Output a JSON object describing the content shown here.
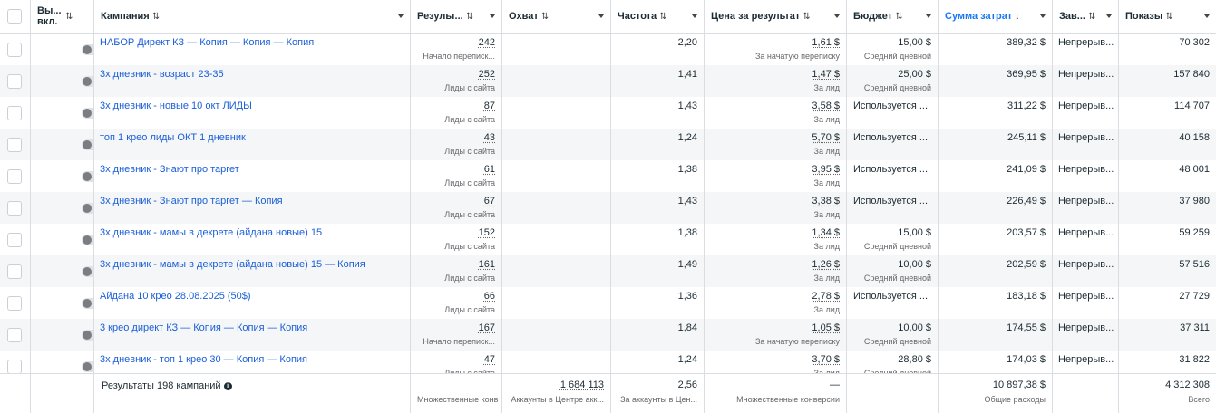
{
  "columns": {
    "toggle": "Вы... вкл.",
    "campaign": "Кампания",
    "results": "Результ...",
    "reach": "Охват",
    "frequency": "Частота",
    "cpr": "Цена за результат",
    "budget": "Бюджет",
    "spent": "Сумма затрат",
    "ends": "Зав...",
    "impressions": "Показы"
  },
  "icons": {
    "sort": "sort-arrows-icon",
    "sort_active": "sort-down-arrow-icon",
    "caret": "caret-down-icon",
    "info": "info-icon"
  },
  "colors": {
    "link": "#1a5fd8",
    "active_header": "#1877f2",
    "toggle_off": "#7a7d82"
  },
  "rows": [
    {
      "name": "НАБОР Директ КЗ — Копия — Копия — Копия",
      "results": "242",
      "results_type": "Начало переписк...",
      "reach": "",
      "frequency": "2,20",
      "cpr": "1,61 $",
      "cpr_type": "За начатую переписку",
      "budget": "15,00 $",
      "budget_type": "Средний дневной",
      "spent": "389,32 $",
      "ends": "Непрерыв...",
      "impressions": "70 302"
    },
    {
      "name": "3х дневник - возраст 23-35",
      "results": "252",
      "results_type": "Лиды с сайта",
      "reach": "",
      "frequency": "1,41",
      "cpr": "1,47 $",
      "cpr_type": "За лид",
      "budget": "25,00 $",
      "budget_type": "Средний дневной",
      "spent": "369,95 $",
      "ends": "Непрерыв...",
      "impressions": "157 840"
    },
    {
      "name": "3х дневник - новые 10 окт ЛИДЫ",
      "results": "87",
      "results_type": "Лиды с сайта",
      "reach": "",
      "frequency": "1,43",
      "cpr": "3,58 $",
      "cpr_type": "За лид",
      "budget": "Используется ...",
      "budget_type": "",
      "spent": "311,22 $",
      "ends": "Непрерыв...",
      "impressions": "114 707"
    },
    {
      "name": "топ 1 крео лиды ОКТ 1 дневник",
      "results": "43",
      "results_type": "Лиды с сайта",
      "reach": "",
      "frequency": "1,24",
      "cpr": "5,70 $",
      "cpr_type": "За лид",
      "budget": "Используется ...",
      "budget_type": "",
      "spent": "245,11 $",
      "ends": "Непрерыв...",
      "impressions": "40 158"
    },
    {
      "name": "3х дневник - Знают про таргет",
      "results": "61",
      "results_type": "Лиды с сайта",
      "reach": "",
      "frequency": "1,38",
      "cpr": "3,95 $",
      "cpr_type": "За лид",
      "budget": "Используется ...",
      "budget_type": "",
      "spent": "241,09 $",
      "ends": "Непрерыв...",
      "impressions": "48 001"
    },
    {
      "name": "3х дневник - Знают про таргет — Копия",
      "results": "67",
      "results_type": "Лиды с сайта",
      "reach": "",
      "frequency": "1,43",
      "cpr": "3,38 $",
      "cpr_type": "За лид",
      "budget": "Используется ...",
      "budget_type": "",
      "spent": "226,49 $",
      "ends": "Непрерыв...",
      "impressions": "37 980"
    },
    {
      "name": "3х дневник - мамы в декрете (айдана новые) 15",
      "results": "152",
      "results_type": "Лиды с сайта",
      "reach": "",
      "frequency": "1,38",
      "cpr": "1,34 $",
      "cpr_type": "За лид",
      "budget": "15,00 $",
      "budget_type": "Средний дневной",
      "spent": "203,57 $",
      "ends": "Непрерыв...",
      "impressions": "59 259"
    },
    {
      "name": "3х дневник - мамы в декрете (айдана новые) 15 — Копия",
      "results": "161",
      "results_type": "Лиды с сайта",
      "reach": "",
      "frequency": "1,49",
      "cpr": "1,26 $",
      "cpr_type": "За лид",
      "budget": "10,00 $",
      "budget_type": "Средний дневной",
      "spent": "202,59 $",
      "ends": "Непрерыв...",
      "impressions": "57 516"
    },
    {
      "name": "Айдана 10 крео 28.08.2025 (50$)",
      "results": "66",
      "results_type": "Лиды с сайта",
      "reach": "",
      "frequency": "1,36",
      "cpr": "2,78 $",
      "cpr_type": "За лид",
      "budget": "Используется ...",
      "budget_type": "",
      "spent": "183,18 $",
      "ends": "Непрерыв...",
      "impressions": "27 729"
    },
    {
      "name": "3 крео директ КЗ — Копия — Копия — Копия",
      "results": "167",
      "results_type": "Начало переписк...",
      "reach": "",
      "frequency": "1,84",
      "cpr": "1,05 $",
      "cpr_type": "За начатую переписку",
      "budget": "10,00 $",
      "budget_type": "Средний дневной",
      "spent": "174,55 $",
      "ends": "Непрерыв...",
      "impressions": "37 311"
    },
    {
      "name": "3х дневник - топ 1 крео 30 — Копия — Копия",
      "results": "47",
      "results_type": "Лиды с сайта",
      "reach": "",
      "frequency": "1,24",
      "cpr": "3,70 $",
      "cpr_type": "За лид",
      "budget": "28,80 $",
      "budget_type": "Средний дневной",
      "spent": "174,03 $",
      "ends": "Непрерыв...",
      "impressions": "31 822"
    }
  ],
  "footer": {
    "label": "Результаты 198 кампаний",
    "results_type": "Множественные конв",
    "reach": "1 684 113",
    "reach_type": "Аккаунты в Центре акк...",
    "frequency": "2,56",
    "frequency_type": "За аккаунты в Цен...",
    "cpr": "—",
    "cpr_type": "Множественные конверсии",
    "spent": "10 897,38 $",
    "spent_type": "Общие расходы",
    "impressions": "4 312 308",
    "impressions_type": "Всего"
  }
}
